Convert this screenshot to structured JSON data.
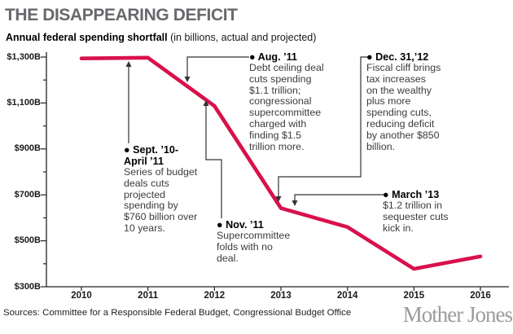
{
  "header": {
    "title": "THE DISAPPEARING DEFICIT",
    "subtitle_bold": "Annual federal spending shortfall",
    "subtitle_rest": " (in billions, actual and projected)"
  },
  "chart_data": {
    "type": "line",
    "title": "Annual federal spending shortfall (in billions, actual and projected)",
    "x": [
      2010,
      2011,
      2012,
      2013,
      2014,
      2015,
      2016
    ],
    "values": [
      1294,
      1297,
      1087,
      642,
      560,
      378,
      432
    ],
    "series_name": "Annual federal deficit ($B)",
    "ylim": [
      300,
      1300
    ],
    "y_major_ticks": [
      {
        "value": 1300,
        "label": "$1,300B"
      },
      {
        "value": 1100,
        "label": "$1,100B"
      },
      {
        "value": 900,
        "label": "$900B"
      },
      {
        "value": 700,
        "label": "$700B"
      },
      {
        "value": 500,
        "label": "$500B"
      },
      {
        "value": 300,
        "label": "$300B"
      }
    ],
    "y_minor_ticks": [
      1200,
      1000,
      800,
      600,
      400
    ],
    "x_tick_labels": [
      "2010",
      "2011",
      "2012",
      "2013",
      "2014",
      "2015",
      "2016"
    ],
    "line_color": "#d8114c",
    "grid": false,
    "legend": "none"
  },
  "annotations": [
    {
      "date": "● Sept. ’10-\nApril ’11",
      "body": "Series of budget\ndeals cuts\nprojected\nspending by\n$760 billion over\n10 years."
    },
    {
      "date": "● Aug. ’11",
      "body": "Debt ceiling deal\ncuts spending\n$1.1 trillion;\ncongressional\nsupercommittee\ncharged with\nfinding $1.5\ntrillion more."
    },
    {
      "date": "● Nov. ’11",
      "body": "Supercommittee\nfolds with no\ndeal."
    },
    {
      "date": "● Dec. 31,’12",
      "body": "Fiscal cliff brings\ntax increases\non the wealthy\nplus more\nspending cuts,\nreducing deficit\nby another $850\nbillion."
    },
    {
      "date": "● March ’13",
      "body": "$1.2 trillion in\nsequester cuts\nkick in."
    }
  ],
  "footer": {
    "sources": "Sources: Committee for a Responsible Federal Budget, Congressional Budget Office",
    "logo": "Mother Jones"
  }
}
